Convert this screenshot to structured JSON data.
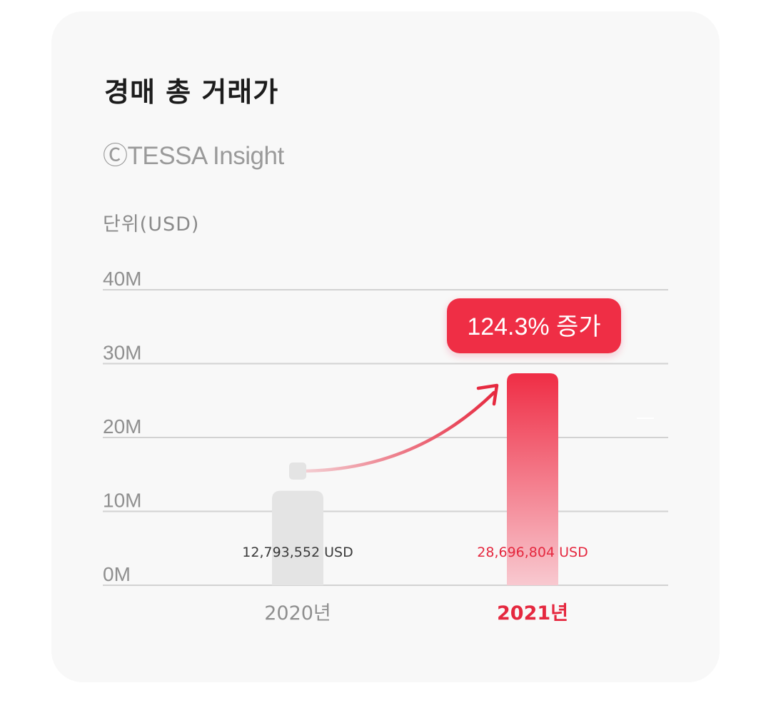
{
  "card": {
    "title": "경매 총 거래가",
    "source": "ⒸTESSA Insight",
    "unit_label": "단위(USD)"
  },
  "chart_data": {
    "type": "bar",
    "categories": [
      "2020년",
      "2021년"
    ],
    "values": [
      12793552,
      28696804
    ],
    "value_labels": [
      "12,793,552 USD",
      "28,696,804 USD"
    ],
    "ylim": [
      0,
      40000000
    ],
    "yticks": [
      0,
      10000000,
      20000000,
      30000000,
      40000000
    ],
    "ytick_labels": [
      "0M",
      "10M",
      "20M",
      "30M",
      "40M"
    ],
    "grid": true,
    "annotation": "124.3% 증가",
    "colors": {
      "previous_bar": "#e4e4e4",
      "current_bar": "#ef2d45",
      "highlight_text": "#e5283f",
      "muted_text": "#8f8f8f"
    }
  }
}
